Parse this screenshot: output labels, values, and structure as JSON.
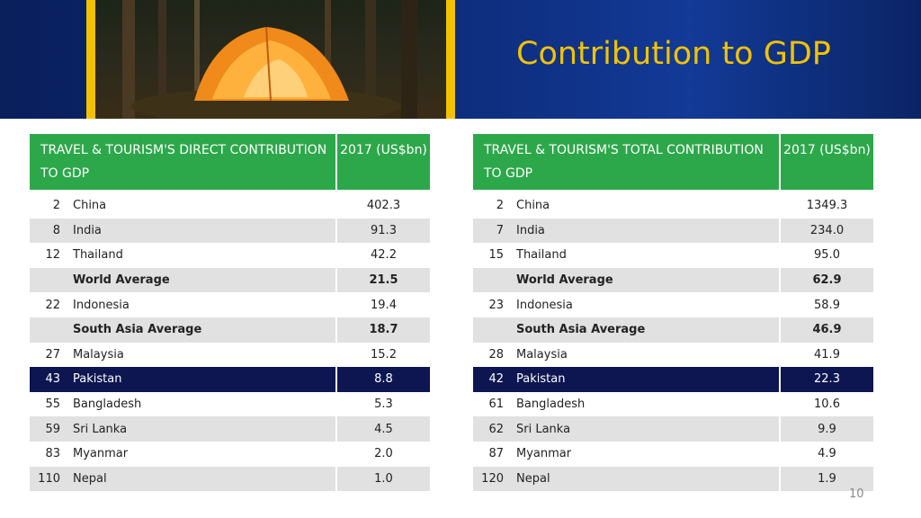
{
  "slide": {
    "title": "Contribution to GDP",
    "page_number": "10"
  },
  "tables": {
    "direct": {
      "header_title": "TRAVEL & TOURISM'S DIRECT CONTRIBUTION TO GDP",
      "header_year": "2017 (US$bn)",
      "rows": [
        {
          "rank": "2",
          "country": "China",
          "value": "402.3"
        },
        {
          "rank": "8",
          "country": "India",
          "value": "91.3"
        },
        {
          "rank": "12",
          "country": "Thailand",
          "value": "42.2"
        },
        {
          "rank": "",
          "country": "World Average",
          "value": "21.5"
        },
        {
          "rank": "22",
          "country": "Indonesia",
          "value": "19.4"
        },
        {
          "rank": "",
          "country": "South Asia Average",
          "value": "18.7"
        },
        {
          "rank": "27",
          "country": "Malaysia",
          "value": "15.2"
        },
        {
          "rank": "43",
          "country": "Pakistan",
          "value": "8.8"
        },
        {
          "rank": "55",
          "country": "Bangladesh",
          "value": "5.3"
        },
        {
          "rank": "59",
          "country": "Sri Lanka",
          "value": "4.5"
        },
        {
          "rank": "83",
          "country": "Myanmar",
          "value": "2.0"
        },
        {
          "rank": "110",
          "country": "Nepal",
          "value": "1.0"
        }
      ]
    },
    "total": {
      "header_title": "TRAVEL & TOURISM'S TOTAL CONTRIBUTION TO GDP",
      "header_year": "2017 (US$bn)",
      "rows": [
        {
          "rank": "2",
          "country": "China",
          "value": "1349.3"
        },
        {
          "rank": "7",
          "country": "India",
          "value": "234.0"
        },
        {
          "rank": "15",
          "country": "Thailand",
          "value": "95.0"
        },
        {
          "rank": "",
          "country": "World Average",
          "value": "62.9"
        },
        {
          "rank": "23",
          "country": "Indonesia",
          "value": "58.9"
        },
        {
          "rank": "",
          "country": "South Asia Average",
          "value": "46.9"
        },
        {
          "rank": "28",
          "country": "Malaysia",
          "value": "41.9"
        },
        {
          "rank": "42",
          "country": "Pakistan",
          "value": "22.3"
        },
        {
          "rank": "61",
          "country": "Bangladesh",
          "value": "10.6"
        },
        {
          "rank": "62",
          "country": "Sri Lanka",
          "value": "9.9"
        },
        {
          "rank": "87",
          "country": "Myanmar",
          "value": "4.9"
        },
        {
          "rank": "120",
          "country": "Nepal",
          "value": "1.9"
        }
      ]
    }
  },
  "colors": {
    "header_green": "#2ca84a",
    "highlight_navy": "#0d1650",
    "title_yellow": "#f2c200",
    "alt_row_gray": "#e1e1e1"
  }
}
